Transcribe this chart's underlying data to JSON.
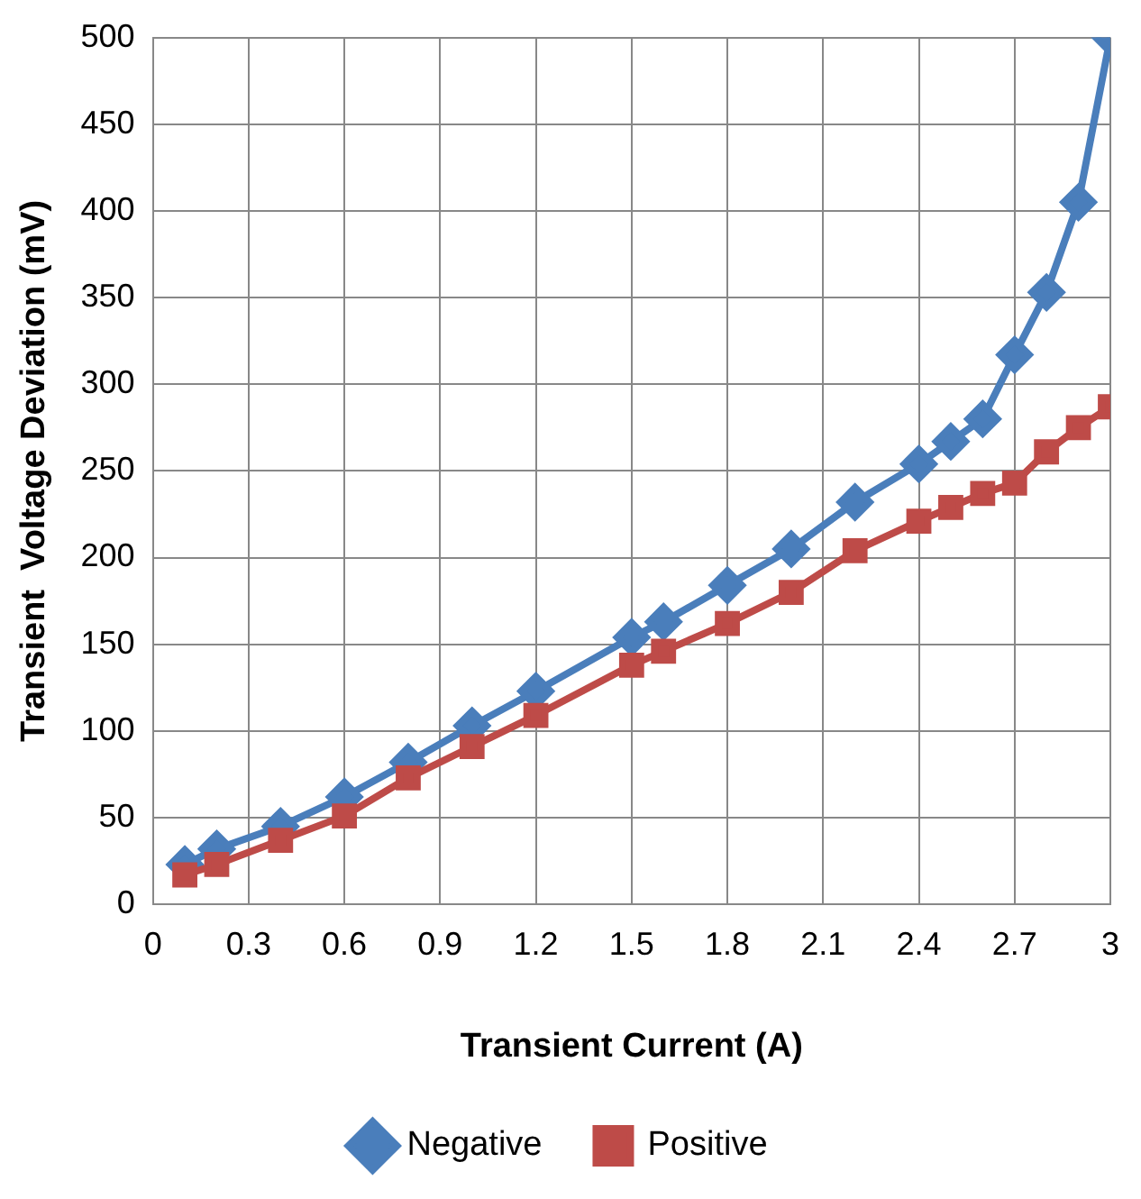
{
  "chart_data": {
    "type": "line",
    "xlabel": "Transient Current (A)",
    "ylabel": "Transient  Voltage Deviation (mV)",
    "x": [
      0.1,
      0.2,
      0.4,
      0.6,
      0.8,
      1.0,
      1.2,
      1.5,
      1.6,
      1.8,
      2.0,
      2.2,
      2.4,
      2.5,
      2.6,
      2.7,
      2.8,
      2.9,
      3.0
    ],
    "series": [
      {
        "name": "Negative",
        "color": "#4a7ebb",
        "marker": "diamond",
        "values": [
          23,
          32,
          45,
          62,
          82,
          103,
          123,
          154,
          163,
          184,
          205,
          232,
          254,
          267,
          280,
          317,
          353,
          405,
          500
        ]
      },
      {
        "name": "Positive",
        "color": "#be4b48",
        "marker": "square",
        "values": [
          17,
          23,
          37,
          51,
          73,
          91,
          109,
          138,
          146,
          162,
          180,
          204,
          221,
          229,
          237,
          243,
          261,
          275,
          287
        ]
      }
    ],
    "xlim": [
      0,
      3
    ],
    "xticks": [
      0,
      0.3,
      0.6,
      0.9,
      1.2,
      1.5,
      1.8,
      2.1,
      2.4,
      2.7,
      3
    ],
    "ylim": [
      0,
      500
    ],
    "yticks": [
      0,
      50,
      100,
      150,
      200,
      250,
      300,
      350,
      400,
      450,
      500
    ],
    "grid": true,
    "legend": "bottom",
    "line_style": "solid"
  }
}
